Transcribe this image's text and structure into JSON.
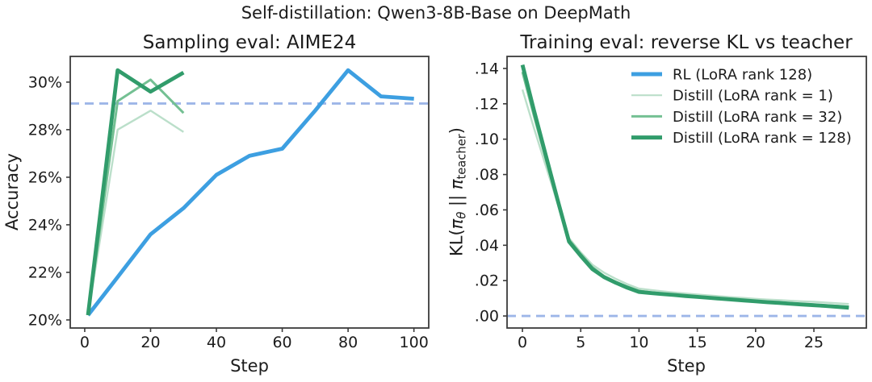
{
  "figure": {
    "suptitle": "Self-distillation: Qwen3-8B-Base on DeepMath",
    "background": "#ffffff",
    "text_color": "#1c1c1c",
    "spine_color": "#3b3b3b"
  },
  "colors": {
    "rl_blue": "#3d9fe1",
    "baseline_dashed_blue": "#9db6e8",
    "distill_green_rank1": "#bbdfca",
    "distill_green_rank32": "#74c093",
    "distill_green_rank128": "#319c6b"
  },
  "chart_data": [
    {
      "type": "line",
      "title": "Sampling eval: AIME24",
      "xlabel": "Step",
      "ylabel": "Accuracy",
      "xlim": [
        -4.4,
        104.5
      ],
      "ylim": [
        19.66,
        31.08
      ],
      "grid": false,
      "legend_position": "none",
      "xticks": [
        {
          "v": 0,
          "label": "0"
        },
        {
          "v": 20,
          "label": "20"
        },
        {
          "v": 40,
          "label": "40"
        },
        {
          "v": 60,
          "label": "60"
        },
        {
          "v": 80,
          "label": "80"
        },
        {
          "v": 100,
          "label": "100"
        }
      ],
      "yticks": [
        {
          "v": 20,
          "label": "20%"
        },
        {
          "v": 22,
          "label": "22%"
        },
        {
          "v": 24,
          "label": "24%"
        },
        {
          "v": 26,
          "label": "26%"
        },
        {
          "v": 28,
          "label": "28%"
        },
        {
          "v": 30,
          "label": "30%"
        }
      ],
      "baseline": {
        "y": 29.1,
        "style": "dashed",
        "color": "#9db6e8"
      },
      "series": [
        {
          "name": "RL (LoRA rank 128)",
          "color": "#3d9fe1",
          "lw": 4.8,
          "x": [
            1,
            10,
            20,
            30,
            40,
            50,
            60,
            70,
            80,
            90,
            100
          ],
          "y": [
            20.2,
            21.8,
            23.6,
            24.7,
            26.1,
            26.9,
            27.2,
            28.8,
            30.5,
            29.4,
            29.3
          ]
        },
        {
          "name": "Distill (LoRA rank = 1)",
          "color": "#bbdfca",
          "lw": 2.4,
          "x": [
            1,
            10,
            20,
            30
          ],
          "y": [
            20.2,
            28.0,
            28.8,
            27.9
          ]
        },
        {
          "name": "Distill (LoRA rank = 32)",
          "color": "#74c093",
          "lw": 3,
          "x": [
            1,
            10,
            20,
            30
          ],
          "y": [
            20.2,
            29.2,
            30.1,
            28.7
          ]
        },
        {
          "name": "Distill (LoRA rank = 128)",
          "color": "#319c6b",
          "lw": 4.8,
          "x": [
            1,
            10,
            20,
            30
          ],
          "y": [
            20.2,
            30.5,
            29.6,
            30.4
          ]
        }
      ]
    },
    {
      "type": "line",
      "title": "Training eval: reverse KL vs teacher",
      "xlabel": "Step",
      "ylabel": "KL(πθ || πteacher)",
      "ylabel_parts": [
        {
          "t": "KL("
        },
        {
          "t": "π",
          "i": true
        },
        {
          "t": "θ",
          "i": true,
          "sub": true
        },
        {
          "t": " || "
        },
        {
          "t": "π",
          "i": true
        },
        {
          "t": "teacher",
          "sub": true
        },
        {
          "t": ")"
        }
      ],
      "xlim": [
        -1.32,
        29.5
      ],
      "ylim": [
        -0.0068,
        0.1468
      ],
      "grid": false,
      "legend_position": "upper right",
      "legend": [
        {
          "label": "RL (LoRA rank 128)",
          "color": "#3d9fe1",
          "lw": 5
        },
        {
          "label": "Distill (LoRA rank = 1)",
          "color": "#bbdfca",
          "lw": 2.2
        },
        {
          "label": "Distill (LoRA rank = 32)",
          "color": "#74c093",
          "lw": 3
        },
        {
          "label": "Distill (LoRA rank = 128)",
          "color": "#319c6b",
          "lw": 5
        }
      ],
      "xticks": [
        {
          "v": 0,
          "label": "0"
        },
        {
          "v": 5,
          "label": "5"
        },
        {
          "v": 10,
          "label": "10"
        },
        {
          "v": 15,
          "label": "15"
        },
        {
          "v": 20,
          "label": "20"
        },
        {
          "v": 25,
          "label": "25"
        }
      ],
      "yticks": [
        {
          "v": 0.0,
          "label": ".00"
        },
        {
          "v": 0.02,
          "label": ".02"
        },
        {
          "v": 0.04,
          "label": ".04"
        },
        {
          "v": 0.06,
          "label": ".06"
        },
        {
          "v": 0.08,
          "label": ".08"
        },
        {
          "v": 0.1,
          "label": ".10"
        },
        {
          "v": 0.12,
          "label": ".12"
        },
        {
          "v": 0.14,
          "label": ".14"
        }
      ],
      "baseline": {
        "y": 0.0,
        "style": "dashed",
        "color": "#9db6e8"
      },
      "series": [
        {
          "name": "Distill (LoRA rank = 1)",
          "color": "#bbdfca",
          "lw": 2.4,
          "x": [
            0,
            1,
            2,
            3,
            4,
            5,
            6,
            7,
            8,
            9,
            10,
            11,
            12,
            13,
            14,
            15,
            16,
            17,
            18,
            19,
            20,
            21,
            22,
            23,
            24,
            25,
            26,
            27,
            28
          ],
          "y": [
            0.128,
            0.106,
            0.085,
            0.064,
            0.044,
            0.036,
            0.029,
            0.0245,
            0.021,
            0.018,
            0.0155,
            0.0147,
            0.014,
            0.0133,
            0.0127,
            0.0121,
            0.0116,
            0.0111,
            0.0106,
            0.0102,
            0.0097,
            0.0093,
            0.009,
            0.0086,
            0.0083,
            0.008,
            0.0076,
            0.0072,
            0.0068
          ]
        },
        {
          "name": "Distill (LoRA rank = 32)",
          "color": "#74c093",
          "lw": 3,
          "x": [
            0,
            1,
            2,
            3,
            4,
            5,
            6,
            7,
            8,
            9,
            10,
            11,
            12,
            13,
            14,
            15,
            16,
            17,
            18,
            19,
            20,
            21,
            22,
            23,
            24,
            25,
            26,
            27,
            28
          ],
          "y": [
            0.138,
            0.113,
            0.089,
            0.065,
            0.043,
            0.035,
            0.0275,
            0.0225,
            0.0193,
            0.0166,
            0.0142,
            0.0134,
            0.0127,
            0.0121,
            0.0115,
            0.011,
            0.0104,
            0.0099,
            0.0094,
            0.0089,
            0.0085,
            0.008,
            0.0076,
            0.0072,
            0.0068,
            0.0064,
            0.006,
            0.0057,
            0.0053
          ]
        },
        {
          "name": "Distill (LoRA rank = 128)",
          "color": "#319c6b",
          "lw": 4.8,
          "x": [
            0,
            1,
            2,
            3,
            4,
            5,
            6,
            7,
            8,
            9,
            10,
            11,
            12,
            13,
            14,
            15,
            16,
            17,
            18,
            19,
            20,
            21,
            22,
            23,
            24,
            25,
            26,
            27,
            28
          ],
          "y": [
            0.142,
            0.116,
            0.091,
            0.066,
            0.042,
            0.034,
            0.0265,
            0.022,
            0.0188,
            0.016,
            0.0136,
            0.013,
            0.0124,
            0.0119,
            0.0113,
            0.0108,
            0.0103,
            0.0098,
            0.0093,
            0.0088,
            0.0083,
            0.0078,
            0.0074,
            0.0069,
            0.0065,
            0.0061,
            0.0057,
            0.0052,
            0.0047
          ]
        }
      ]
    }
  ]
}
